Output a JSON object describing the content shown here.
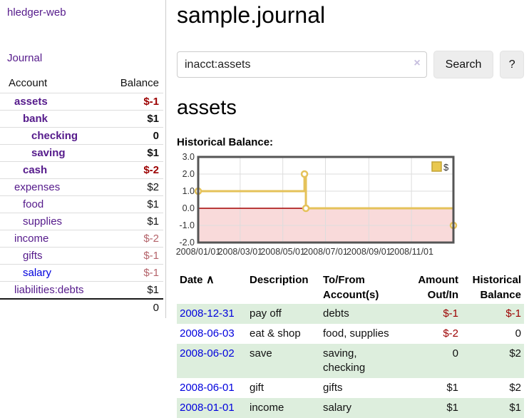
{
  "sidebar": {
    "brand": "hledger-web",
    "nav": {
      "journal": "Journal"
    },
    "accounts_table": {
      "account_header": "Account",
      "balance_header": "Balance",
      "rows": [
        {
          "name": "assets",
          "depth": 0,
          "bold": true,
          "name_color": "purple",
          "balance": "$-1",
          "balance_color": "negative"
        },
        {
          "name": "bank",
          "depth": 1,
          "bold": true,
          "name_color": "purple",
          "balance": "$1",
          "balance_color": "normal"
        },
        {
          "name": "checking",
          "depth": 2,
          "bold": true,
          "name_color": "purple",
          "balance": "0",
          "balance_color": "normal"
        },
        {
          "name": "saving",
          "depth": 2,
          "bold": true,
          "name_color": "purple",
          "balance": "$1",
          "balance_color": "normal"
        },
        {
          "name": "cash",
          "depth": 1,
          "bold": true,
          "name_color": "purple",
          "balance": "$-2",
          "balance_color": "negative"
        },
        {
          "name": "expenses",
          "depth": 0,
          "bold": false,
          "name_color": "purple",
          "balance": "$2",
          "balance_color": "normal"
        },
        {
          "name": "food",
          "depth": 1,
          "bold": false,
          "name_color": "purple",
          "balance": "$1",
          "balance_color": "normal"
        },
        {
          "name": "supplies",
          "depth": 1,
          "bold": false,
          "name_color": "purple",
          "balance": "$1",
          "balance_color": "normal"
        },
        {
          "name": "income",
          "depth": 0,
          "bold": false,
          "name_color": "purple",
          "balance": "$-2",
          "balance_color": "muted-negative"
        },
        {
          "name": "gifts",
          "depth": 1,
          "bold": false,
          "name_color": "purple",
          "balance": "$-1",
          "balance_color": "muted-negative"
        },
        {
          "name": "salary",
          "depth": 1,
          "bold": false,
          "name_color": "blue",
          "balance": "$-1",
          "balance_color": "muted-negative"
        },
        {
          "name": "liabilities:debts",
          "depth": 0,
          "bold": false,
          "name_color": "purple",
          "balance": "$1",
          "balance_color": "normal"
        }
      ],
      "total": "0"
    }
  },
  "main": {
    "title": "sample.journal",
    "search": {
      "value": "inacct:assets",
      "clear_icon": "×",
      "search_button": "Search",
      "help_button": "?"
    },
    "account_heading": "assets",
    "chart_heading": "Historical Balance:"
  },
  "chart_data": {
    "type": "line",
    "step": true,
    "title": "Historical Balance",
    "legend": [
      {
        "label": "$"
      }
    ],
    "legend_position": "top-right",
    "grid": true,
    "ylim": [
      -2,
      3
    ],
    "y_ticks": [
      "3.0",
      "2.0",
      "1.0",
      "0.0",
      "-1.0",
      "-2.0"
    ],
    "y_tick_values": [
      3,
      2,
      1,
      0,
      -1,
      -2
    ],
    "y_gridline_values": [
      2,
      1,
      -1
    ],
    "x_total_days": 365,
    "x_ticks": [
      {
        "label": "2008/01/01",
        "day": 0
      },
      {
        "label": "2008/03/01",
        "day": 60
      },
      {
        "label": "2008/05/01",
        "day": 121
      },
      {
        "label": "2008/07/01",
        "day": 182
      },
      {
        "label": "2008/09/01",
        "day": 244
      },
      {
        "label": "2008/11/01",
        "day": 305
      }
    ],
    "series": [
      {
        "name": "$",
        "points": [
          {
            "date": "2008-01-01",
            "day": 0,
            "value": 1
          },
          {
            "date": "2008-06-01",
            "day": 152,
            "value": 2
          },
          {
            "date": "2008-06-03",
            "day": 154,
            "value": 0
          },
          {
            "date": "2008-12-31",
            "day": 365,
            "value": -1
          }
        ]
      }
    ],
    "colors": {
      "line": "#e5c25a",
      "marker_fill": "#ffffff",
      "legend_fill": "#e9c84f",
      "legend_stroke": "#c3a437",
      "negative_region": "#f9dada",
      "zero_line": "#a40000",
      "grid": "#dddddd",
      "border": "#555555",
      "tick_text": "#333333"
    }
  },
  "transactions": {
    "columns": [
      {
        "label": "Date",
        "sort_icon": "∧",
        "align": "left"
      },
      {
        "label": "Description",
        "align": "left"
      },
      {
        "label": "To/From Account(s)",
        "align": "left"
      },
      {
        "label": "Amount Out/In",
        "align": "right"
      },
      {
        "label": "Historical Balance",
        "align": "right"
      }
    ],
    "rows": [
      {
        "date": "2008-12-31",
        "description": "pay off",
        "accounts": "debts",
        "amount": "$-1",
        "amount_negative": true,
        "balance": "$-1",
        "balance_negative": true
      },
      {
        "date": "2008-06-03",
        "description": "eat & shop",
        "accounts": "food, supplies",
        "amount": "$-2",
        "amount_negative": true,
        "balance": "0",
        "balance_negative": false
      },
      {
        "date": "2008-06-02",
        "description": "save",
        "accounts": "saving, checking",
        "amount": "0",
        "amount_negative": false,
        "balance": "$2",
        "balance_negative": false
      },
      {
        "date": "2008-06-01",
        "description": "gift",
        "accounts": "gifts",
        "amount": "$1",
        "amount_negative": false,
        "balance": "$2",
        "balance_negative": false
      },
      {
        "date": "2008-01-01",
        "description": "income",
        "accounts": "salary",
        "amount": "$1",
        "amount_negative": false,
        "balance": "$1",
        "balance_negative": false
      }
    ]
  }
}
